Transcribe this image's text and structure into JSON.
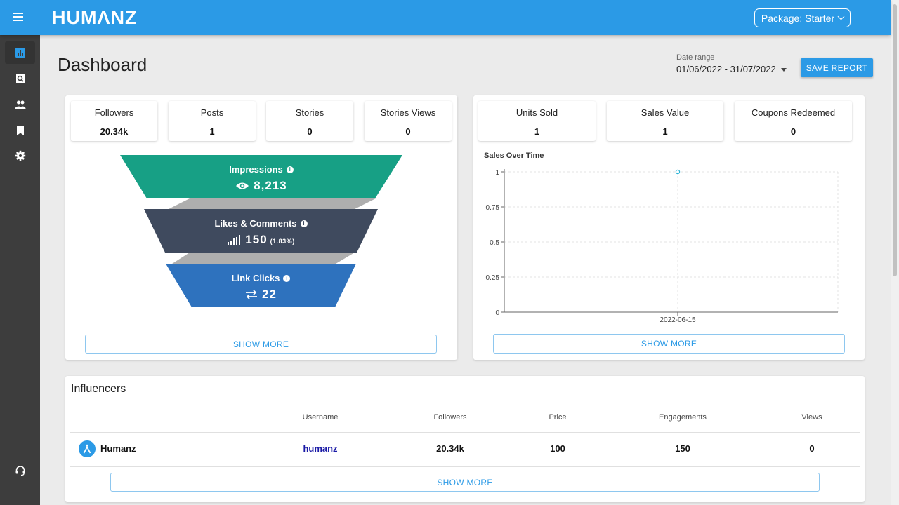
{
  "app": {
    "logo": "HUMΛNZ",
    "package_label": "Package: Starter"
  },
  "sidebar": {
    "items": [
      {
        "icon": "bar-chart-icon",
        "active": true
      },
      {
        "icon": "search-document-icon"
      },
      {
        "icon": "people-icon"
      },
      {
        "icon": "bookmark-icon"
      },
      {
        "icon": "gear-icon"
      },
      {
        "icon": "support-headset-icon"
      }
    ]
  },
  "header": {
    "title": "Dashboard",
    "date_range_label": "Date range",
    "date_range_value": "01/06/2022 - 31/07/2022",
    "save_report_label": "SAVE REPORT"
  },
  "engagement": {
    "stats": [
      {
        "label": "Followers",
        "value": "20.34k"
      },
      {
        "label": "Posts",
        "value": "1"
      },
      {
        "label": "Stories",
        "value": "0"
      },
      {
        "label": "Stories Views",
        "value": "0"
      }
    ],
    "funnel": {
      "impressions": {
        "label": "Impressions",
        "value": "8,213"
      },
      "likes": {
        "label": "Likes & Comments",
        "value": "150",
        "pct": "(1.83%)"
      },
      "clicks": {
        "label": "Link Clicks",
        "value": "22"
      }
    },
    "show_more": "SHOW MORE"
  },
  "sales": {
    "stats": [
      {
        "label": "Units Sold",
        "value": "1"
      },
      {
        "label": "Sales Value",
        "value": "1"
      },
      {
        "label": "Coupons Redeemed",
        "value": "0"
      }
    ],
    "show_more": "SHOW MORE"
  },
  "colors": {
    "accent": "#2b9ae6",
    "funnel_top": "#17a085",
    "funnel_mid": "#3f4a5e",
    "funnel_bottom": "#2e72be"
  },
  "chart_data": {
    "type": "scatter",
    "title": "Sales Over Time",
    "x": [
      "2022-06-15"
    ],
    "y": [
      1
    ],
    "ylim": [
      0,
      1
    ],
    "yticks": [
      "0",
      "0.25",
      "0.5",
      "0.75",
      "1"
    ],
    "xticks": [
      "2022-06-15"
    ],
    "grid": true
  },
  "influencers": {
    "title": "Influencers",
    "columns": [
      "Username",
      "Followers",
      "Price",
      "Engagements",
      "Views"
    ],
    "rows": [
      {
        "name": "Humanz",
        "username": "humanz",
        "followers": "20.34k",
        "price": "100",
        "engagements": "150",
        "views": "0"
      }
    ],
    "show_more": "SHOW MORE"
  }
}
